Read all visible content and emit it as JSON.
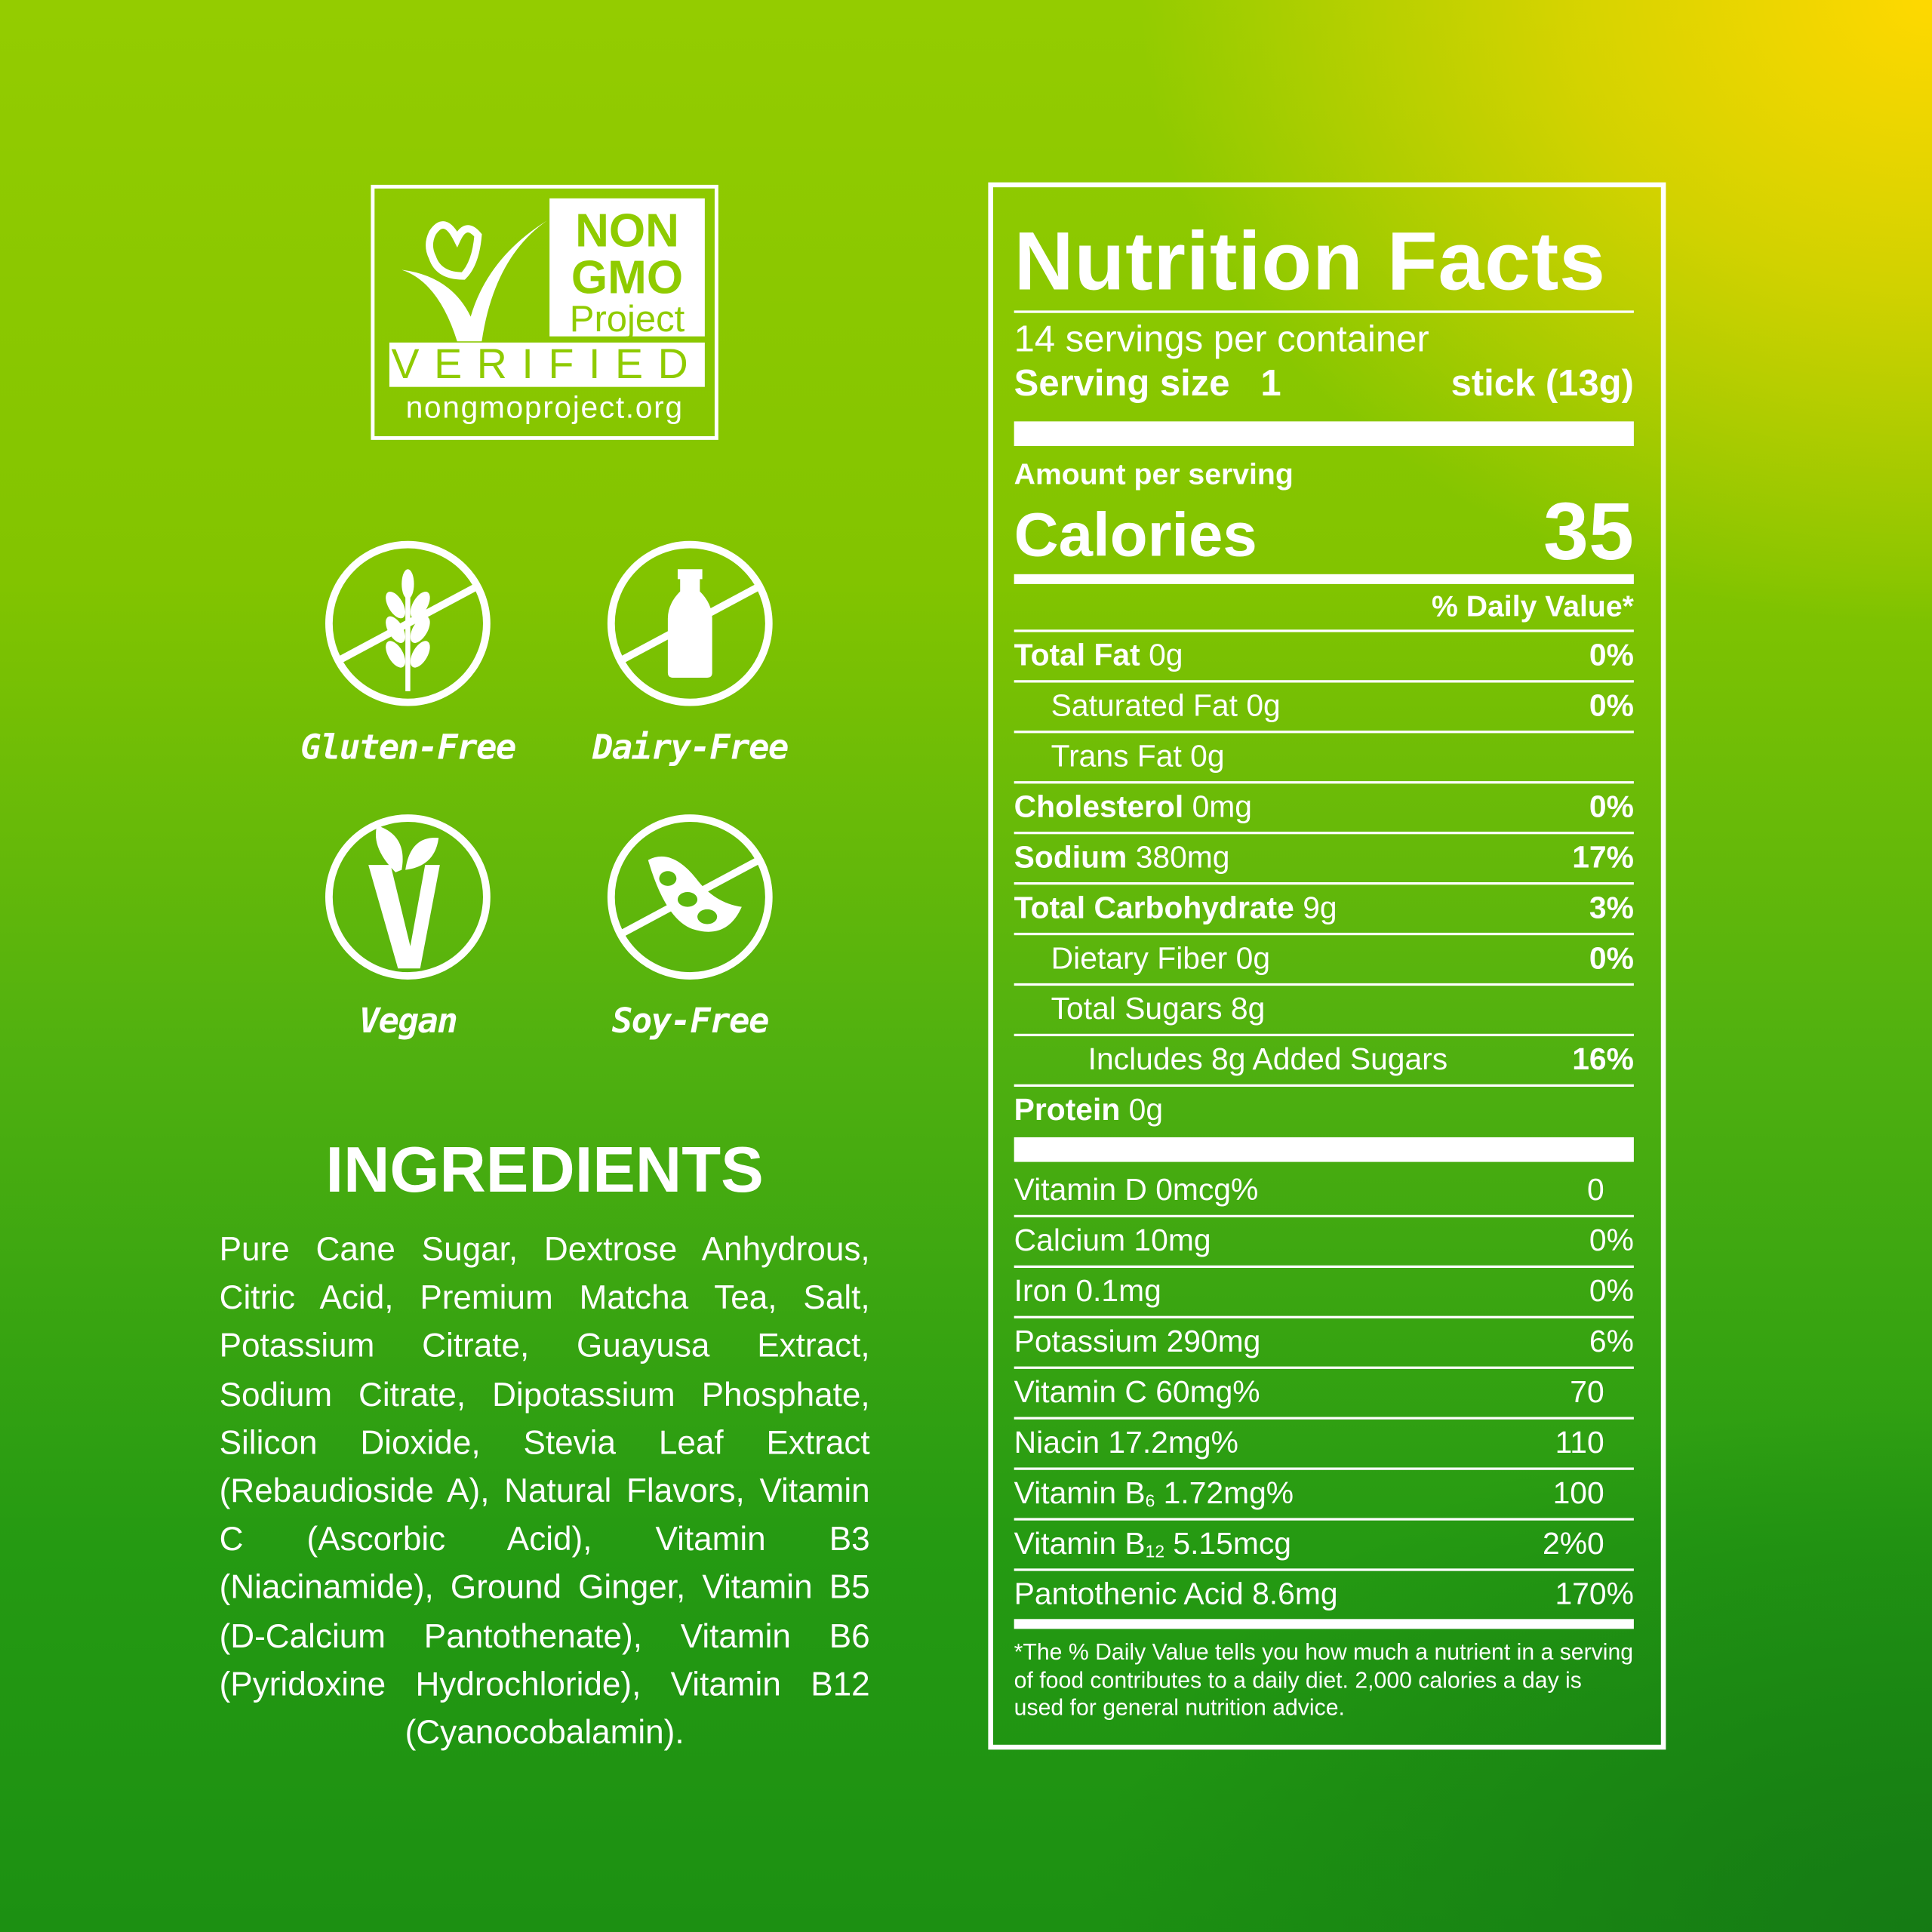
{
  "logo": {
    "line1": "NON",
    "line2": "GMO",
    "line3": "Project",
    "verified": "VERIFIED",
    "url": "nongmoproject.org"
  },
  "badges": [
    {
      "icon": "no-wheat-icon",
      "label": "Gluten-Free"
    },
    {
      "icon": "no-milk-bottle-icon",
      "label": "Dairy-Free"
    },
    {
      "icon": "vegan-leaf-icon",
      "label": "Vegan"
    },
    {
      "icon": "no-soybean-icon",
      "label": "Soy-Free"
    }
  ],
  "ingredients": {
    "title": "INGREDIENTS",
    "text": "Pure Cane Sugar, Dextrose Anhydrous, Citric Acid, Premium Matcha Tea, Salt, Potassium Citrate, Guayusa Extract, Sodium Citrate, Dipotassium Phosphate, Silicon Dioxide, Stevia Leaf Extract (Rebaudioside A), Natural Flavors, Vitamin C (Ascorbic Acid), Vitamin B3 (Niacinamide), Ground Ginger, Vitamin B5 (D-Calcium Pantothenate), Vitamin B6 (Pyridoxine Hydrochloride), Vitamin B12 (Cyanocobalamin)."
  },
  "nutrition": {
    "title": "Nutrition Facts",
    "servings": "14 servings per container",
    "serving_size_label": "Serving size",
    "serving_size_qty": "1",
    "serving_size_value": "stick (13g)",
    "amount_per_serving": "Amount per serving",
    "calories_label": "Calories",
    "calories": "35",
    "dv_header": "% Daily Value*",
    "rows": [
      {
        "name": "Total Fat",
        "amount": "0g",
        "dv": "0%"
      },
      {
        "name": "Saturated Fat",
        "amount": "0g",
        "dv": "0%"
      },
      {
        "name": "Trans Fat",
        "amount": "0g",
        "dv": ""
      },
      {
        "name": "Cholesterol",
        "amount": "0mg",
        "dv": "0%"
      },
      {
        "name": "Sodium",
        "amount": "380mg",
        "dv": "17%"
      },
      {
        "name": "Total Carbohydrate",
        "amount": "9g",
        "dv": "3%"
      },
      {
        "name": "Dietary Fiber",
        "amount": "0g",
        "dv": "0%"
      },
      {
        "name": "Total Sugars",
        "amount": "8g",
        "dv": ""
      },
      {
        "name": "Includes 8g Added Sugars",
        "amount": "",
        "dv": "16%"
      },
      {
        "name": "Protein",
        "amount": "0g",
        "dv": ""
      }
    ],
    "vitamins": [
      {
        "label": "Vitamin D 0mcg%",
        "dv": "0"
      },
      {
        "label": "Calcium 10mg",
        "dv": "0%"
      },
      {
        "label": "Iron 0.1mg",
        "dv": "0%"
      },
      {
        "label": "Potassium 290mg",
        "dv": "6%"
      },
      {
        "label": "Vitamin C 60mg%",
        "dv": "70"
      },
      {
        "label": "Niacin 17.2mg%",
        "dv": "110"
      },
      {
        "label_pre": "Vitamin B",
        "label_sub": "6",
        "label_post": " 1.72mg%",
        "dv": "100"
      },
      {
        "label_pre": "Vitamin B",
        "label_sub": "12",
        "label_post": " 5.15mcg",
        "dv": "2%0"
      },
      {
        "label": "Pantothenic Acid 8.6mg",
        "dv": "170%"
      }
    ],
    "footnote": "*The % Daily Value tells you how much a nutrient in a serving of food contributes to a daily diet. 2,000 calories a day is used for general nutrition advice."
  }
}
